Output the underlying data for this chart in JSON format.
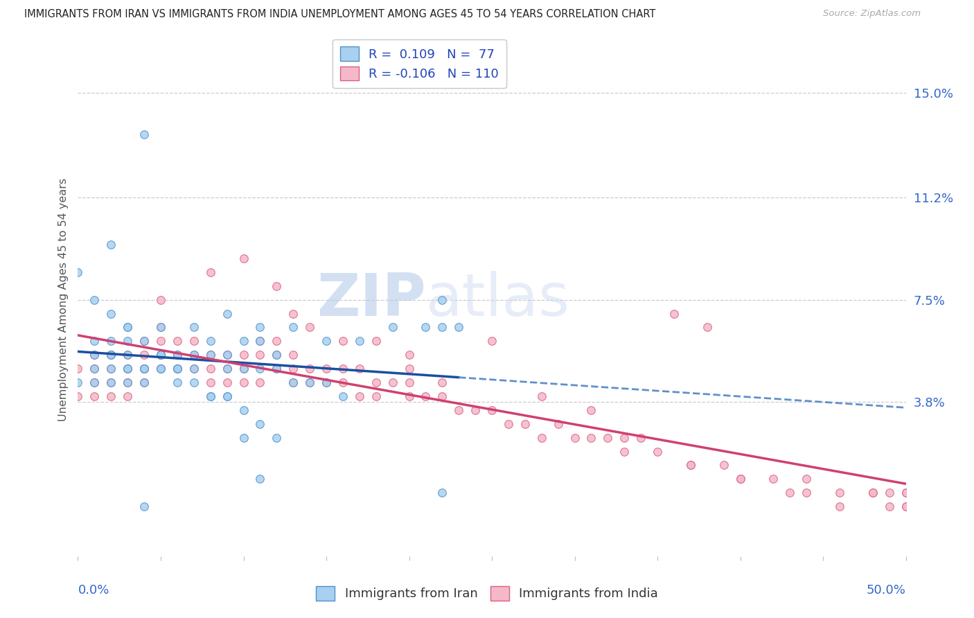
{
  "title": "IMMIGRANTS FROM IRAN VS IMMIGRANTS FROM INDIA UNEMPLOYMENT AMONG AGES 45 TO 54 YEARS CORRELATION CHART",
  "source": "Source: ZipAtlas.com",
  "ylabel": "Unemployment Among Ages 45 to 54 years",
  "xlim": [
    0.0,
    0.5
  ],
  "ylim": [
    -0.018,
    0.168
  ],
  "ytick_vals": [
    0.0,
    0.038,
    0.075,
    0.112,
    0.15
  ],
  "ytick_labels": [
    "",
    "3.8%",
    "7.5%",
    "11.2%",
    "15.0%"
  ],
  "xtick_vals": [
    0.0,
    0.05,
    0.1,
    0.15,
    0.2,
    0.25,
    0.3,
    0.35,
    0.4,
    0.45,
    0.5
  ],
  "xtick_major": [
    0.0,
    0.5
  ],
  "xtick_labels": [
    "0.0%",
    "50.0%"
  ],
  "iran_fill": "#a8d0f0",
  "iran_edge": "#5090c8",
  "india_fill": "#f5b8c8",
  "india_edge": "#d86080",
  "iran_line_solid": "#1a4fa0",
  "iran_line_dashed": "#6090c8",
  "india_line": "#d04070",
  "iran_R": 0.109,
  "iran_N": 77,
  "india_R": -0.106,
  "india_N": 110,
  "tick_color": "#3366cc",
  "grid_color": "#cccccc",
  "title_color": "#222222",
  "ylabel_color": "#555555",
  "watermark_text": "ZIPatlas",
  "bg_color": "#ffffff",
  "legend_text_color": "#2244bb",
  "iran_x": [
    0.04,
    0.02,
    0.0,
    0.01,
    0.02,
    0.03,
    0.03,
    0.04,
    0.05,
    0.06,
    0.08,
    0.09,
    0.1,
    0.11,
    0.12,
    0.13,
    0.14,
    0.15,
    0.16,
    0.01,
    0.02,
    0.02,
    0.03,
    0.04,
    0.05,
    0.06,
    0.07,
    0.08,
    0.09,
    0.1,
    0.11,
    0.12,
    0.03,
    0.05,
    0.07,
    0.09,
    0.11,
    0.13,
    0.15,
    0.17,
    0.19,
    0.21,
    0.23,
    0.01,
    0.01,
    0.02,
    0.02,
    0.03,
    0.03,
    0.04,
    0.04,
    0.05,
    0.05,
    0.06,
    0.06,
    0.07,
    0.08,
    0.09,
    0.1,
    0.11,
    0.12,
    0.0,
    0.01,
    0.02,
    0.03,
    0.04,
    0.05,
    0.06,
    0.07,
    0.08,
    0.09,
    0.1,
    0.11,
    0.22,
    0.22,
    0.04,
    0.22
  ],
  "iran_y": [
    0.135,
    0.095,
    0.085,
    0.075,
    0.07,
    0.065,
    0.06,
    0.06,
    0.055,
    0.055,
    0.055,
    0.05,
    0.05,
    0.05,
    0.05,
    0.045,
    0.045,
    0.045,
    0.04,
    0.06,
    0.06,
    0.055,
    0.055,
    0.05,
    0.055,
    0.05,
    0.055,
    0.06,
    0.055,
    0.06,
    0.06,
    0.055,
    0.065,
    0.065,
    0.065,
    0.07,
    0.065,
    0.065,
    0.06,
    0.06,
    0.065,
    0.065,
    0.065,
    0.045,
    0.05,
    0.045,
    0.055,
    0.05,
    0.045,
    0.05,
    0.05,
    0.05,
    0.055,
    0.05,
    0.045,
    0.05,
    0.04,
    0.04,
    0.035,
    0.03,
    0.025,
    0.045,
    0.055,
    0.05,
    0.05,
    0.045,
    0.05,
    0.05,
    0.045,
    0.04,
    0.04,
    0.025,
    0.01,
    0.065,
    0.005,
    0.0,
    0.075
  ],
  "india_x": [
    0.0,
    0.0,
    0.01,
    0.01,
    0.01,
    0.01,
    0.02,
    0.02,
    0.02,
    0.02,
    0.03,
    0.03,
    0.03,
    0.03,
    0.04,
    0.04,
    0.04,
    0.04,
    0.05,
    0.05,
    0.05,
    0.05,
    0.06,
    0.06,
    0.06,
    0.07,
    0.07,
    0.07,
    0.08,
    0.08,
    0.08,
    0.09,
    0.09,
    0.09,
    0.1,
    0.1,
    0.1,
    0.11,
    0.11,
    0.11,
    0.12,
    0.12,
    0.12,
    0.13,
    0.13,
    0.13,
    0.14,
    0.14,
    0.15,
    0.15,
    0.16,
    0.16,
    0.17,
    0.17,
    0.18,
    0.18,
    0.19,
    0.2,
    0.2,
    0.21,
    0.22,
    0.23,
    0.24,
    0.25,
    0.26,
    0.27,
    0.28,
    0.29,
    0.3,
    0.31,
    0.32,
    0.33,
    0.35,
    0.37,
    0.39,
    0.4,
    0.42,
    0.44,
    0.46,
    0.48,
    0.5,
    0.05,
    0.08,
    0.1,
    0.12,
    0.14,
    0.18,
    0.2,
    0.22,
    0.25,
    0.28,
    0.31,
    0.34,
    0.37,
    0.4,
    0.43,
    0.46,
    0.49,
    0.5,
    0.36,
    0.38,
    0.49,
    0.5,
    0.13,
    0.16,
    0.2,
    0.33,
    0.44,
    0.48,
    0.5
  ],
  "india_y": [
    0.05,
    0.04,
    0.055,
    0.05,
    0.045,
    0.04,
    0.055,
    0.05,
    0.045,
    0.04,
    0.055,
    0.05,
    0.045,
    0.04,
    0.06,
    0.055,
    0.05,
    0.045,
    0.065,
    0.06,
    0.055,
    0.05,
    0.06,
    0.055,
    0.05,
    0.06,
    0.055,
    0.05,
    0.055,
    0.05,
    0.045,
    0.055,
    0.05,
    0.045,
    0.055,
    0.05,
    0.045,
    0.06,
    0.055,
    0.045,
    0.06,
    0.055,
    0.05,
    0.055,
    0.05,
    0.045,
    0.05,
    0.045,
    0.05,
    0.045,
    0.05,
    0.045,
    0.05,
    0.04,
    0.045,
    0.04,
    0.045,
    0.045,
    0.04,
    0.04,
    0.04,
    0.035,
    0.035,
    0.035,
    0.03,
    0.03,
    0.025,
    0.03,
    0.025,
    0.025,
    0.025,
    0.02,
    0.02,
    0.015,
    0.015,
    0.01,
    0.01,
    0.01,
    0.005,
    0.005,
    0.0,
    0.075,
    0.085,
    0.09,
    0.08,
    0.065,
    0.06,
    0.05,
    0.045,
    0.06,
    0.04,
    0.035,
    0.025,
    0.015,
    0.01,
    0.005,
    0.0,
    0.0,
    0.0,
    0.07,
    0.065,
    0.005,
    0.005,
    0.07,
    0.06,
    0.055,
    0.025,
    0.005,
    0.005,
    0.005
  ]
}
